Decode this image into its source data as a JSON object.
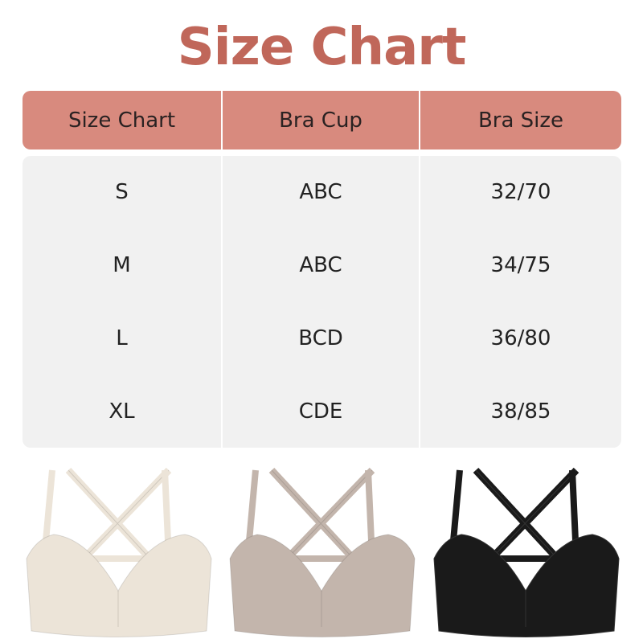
{
  "title": "Size Chart",
  "table": {
    "headers": [
      "Size Chart",
      "Bra Cup",
      "Bra Size"
    ],
    "rows": [
      [
        "S",
        "ABC",
        "32/70"
      ],
      [
        "M",
        "ABC",
        "34/75"
      ],
      [
        "L",
        "BCD",
        "36/80"
      ],
      [
        "XL",
        "CDE",
        "38/85"
      ]
    ]
  },
  "colors": {
    "title": "#c0675a",
    "header_bg": "#d88a7e",
    "body_bg": "#f1f1f1"
  },
  "products": [
    {
      "name": "beige-bra",
      "color": "#ece4d8"
    },
    {
      "name": "taupe-bra",
      "color": "#c3b5ac"
    },
    {
      "name": "black-bra",
      "color": "#1a1a1a"
    }
  ]
}
